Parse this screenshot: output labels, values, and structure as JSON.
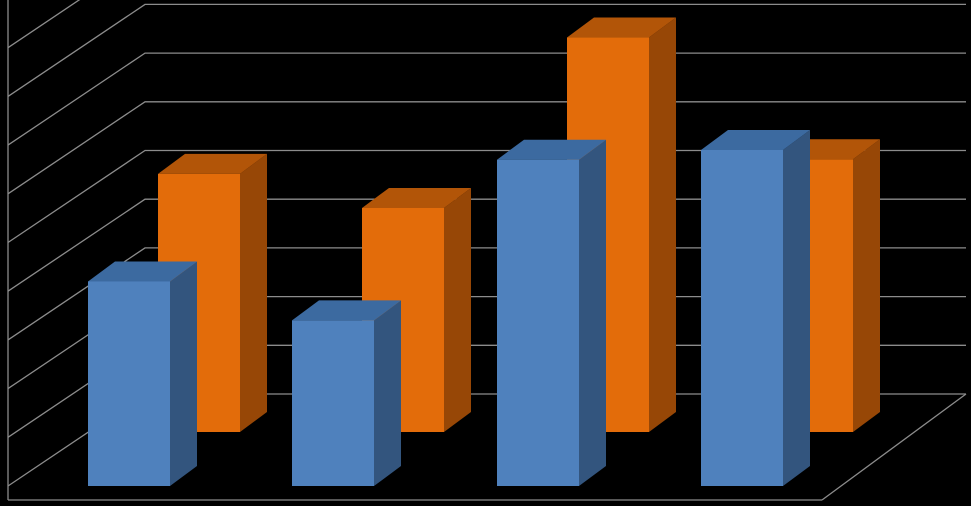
{
  "chart_data": {
    "type": "bar",
    "categories": [
      "",
      "",
      "",
      ""
    ],
    "series": [
      {
        "values": [
          4.2,
          3.4,
          6.7,
          6.9
        ]
      },
      {
        "values": [
          5.3,
          4.6,
          8.1,
          5.6
        ]
      }
    ],
    "title": "",
    "xlabel": "",
    "ylabel": "",
    "ylim": [
      0,
      10
    ],
    "grid": true,
    "legend": "none",
    "depth_3d": true
  },
  "colors": {
    "background": "#000000",
    "grid": "#8c8c8c",
    "series_front": [
      "#4f81bd",
      "#e36c0a"
    ],
    "series_side": [
      "#33557e",
      "#974706"
    ],
    "series_top": [
      "#3c6aa0",
      "#b25508"
    ]
  }
}
